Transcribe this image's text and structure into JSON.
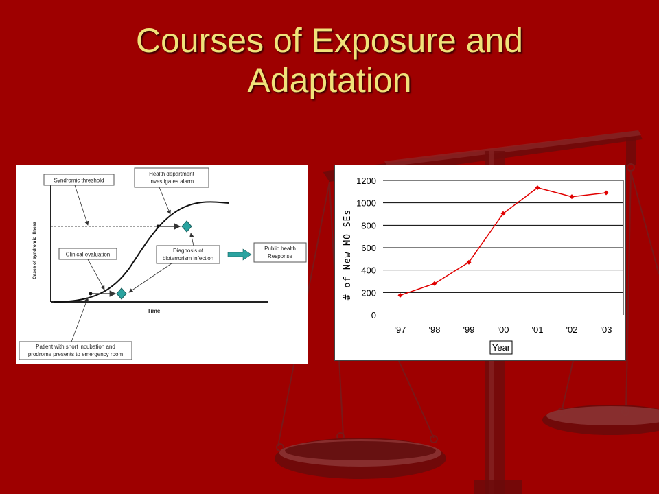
{
  "slide": {
    "title_line1": "Courses of Exposure and",
    "title_line2": "Adaptation"
  },
  "colors": {
    "background": "#9e0000",
    "title": "#f0e27a",
    "chart_line": "#e00000",
    "diamond_marker": "#2aa3a0"
  },
  "diagram": {
    "labels": {
      "syndromic_threshold": "Syndromic threshold",
      "health_dept_line1": "Health department",
      "health_dept_line2": "investigates alarm",
      "clinical_evaluation": "Clinical evaluation",
      "diagnosis_line1": "Diagnosis of",
      "diagnosis_line2": "bioterrorism infection",
      "public_health_line1": "Public health",
      "public_health_line2": "Response",
      "y_axis": "Cases of syndromic illness",
      "x_axis": "Time",
      "patient_line1": "Patient with short incubation and",
      "patient_line2": "prodrome presents to emergency room"
    }
  },
  "chart_data": {
    "type": "line",
    "categories": [
      "'97",
      "'98",
      "'99",
      "'00",
      "'01",
      "'02",
      "'03"
    ],
    "series": [
      {
        "values": [
          175,
          280,
          470,
          905,
          1135,
          1055,
          1090
        ]
      }
    ],
    "ylabel": "# of New MO SEs",
    "xlabel": "Year",
    "ylim": [
      0,
      1200
    ],
    "yticks": [
      0,
      200,
      400,
      600,
      800,
      1000,
      1200
    ],
    "grid": true,
    "legend": "none"
  }
}
